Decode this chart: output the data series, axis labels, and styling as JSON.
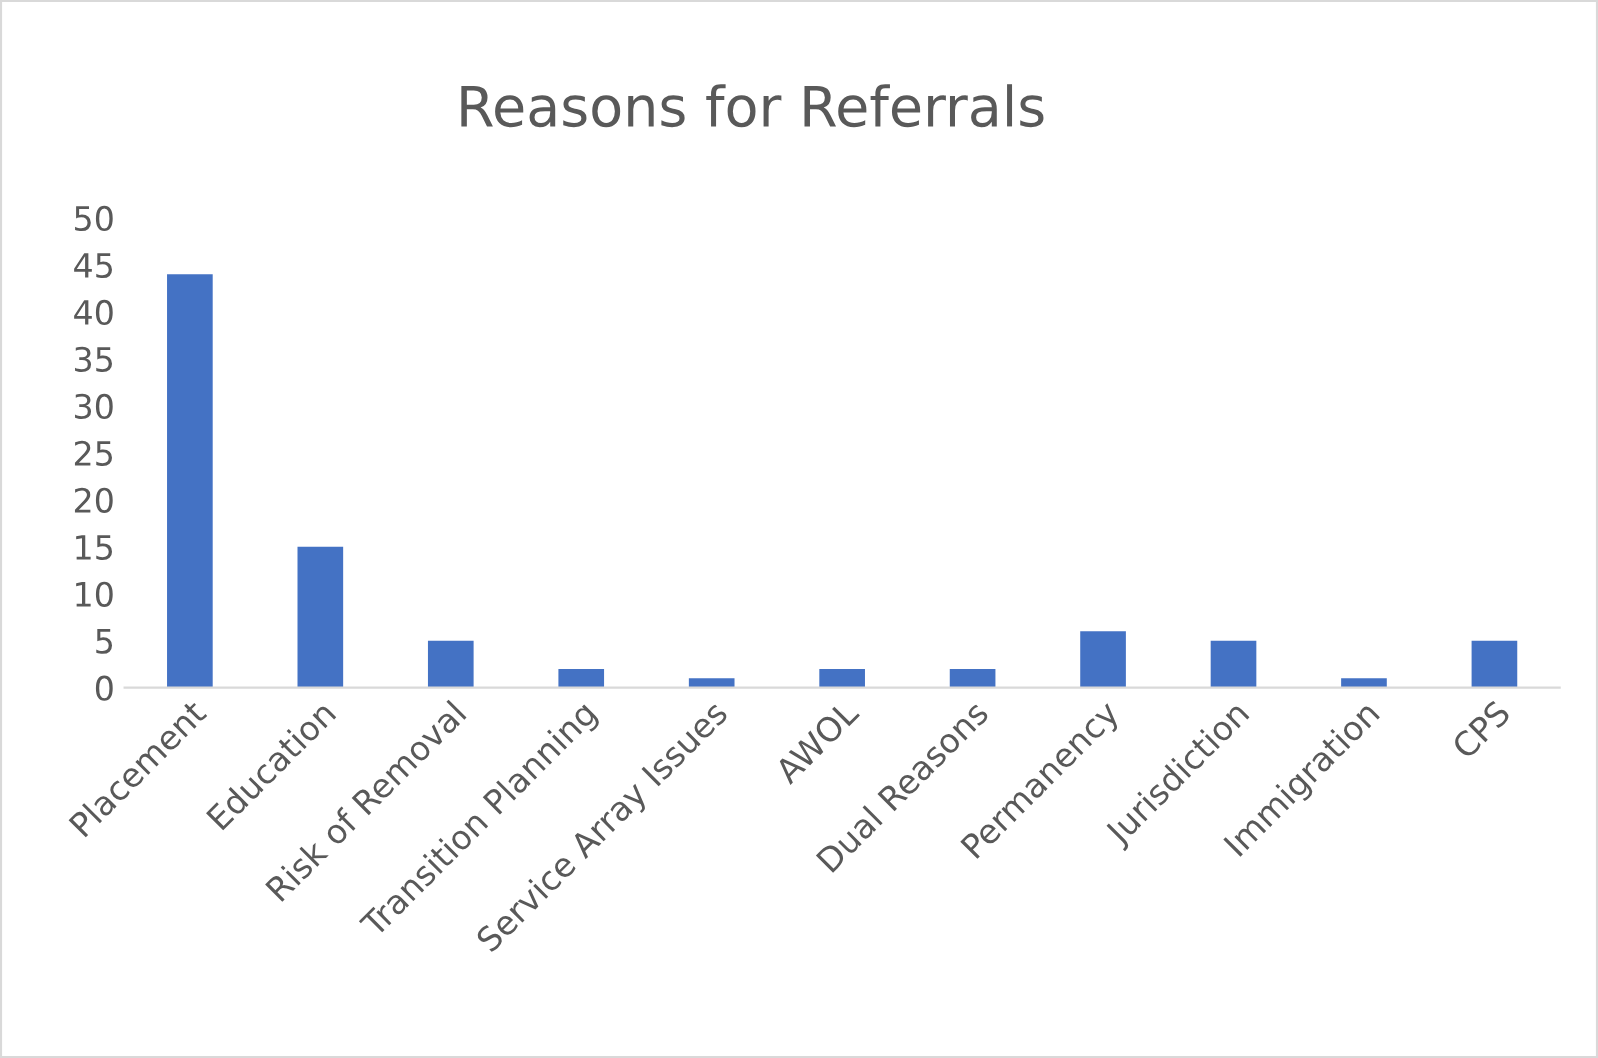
{
  "chart_data": {
    "type": "bar",
    "title": "Reasons for Referrals",
    "categories": [
      "Placement",
      "Education",
      "Risk of Removal",
      "Transition Planning",
      "Service Array Issues",
      "AWOL",
      "Dual Reasons",
      "Permanency",
      "Jurisdiction",
      "Immigration",
      "CPS"
    ],
    "values": [
      44,
      15,
      5,
      2,
      1,
      2,
      2,
      6,
      5,
      1,
      5
    ],
    "color": "#4472c4",
    "ylim": [
      0,
      50
    ],
    "yticks": [
      0,
      5,
      10,
      15,
      20,
      25,
      30,
      35,
      40,
      45,
      50
    ],
    "grid": false,
    "legend": false
  }
}
